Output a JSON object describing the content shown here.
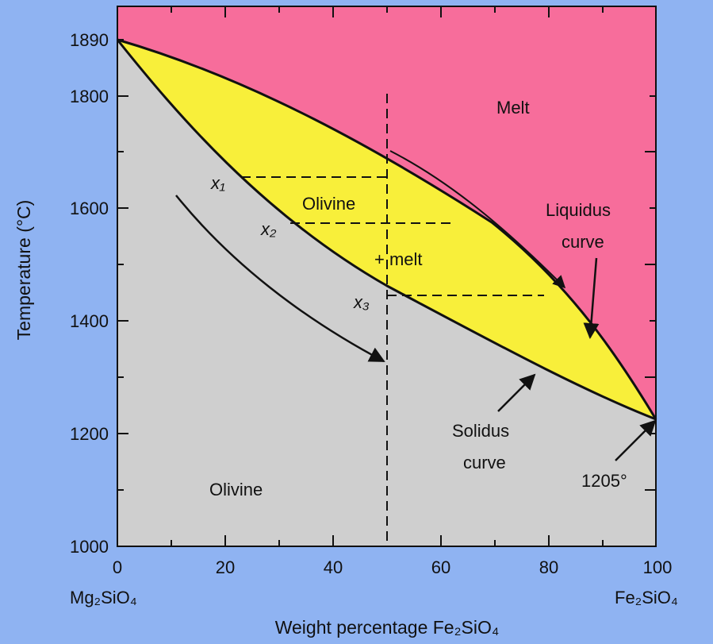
{
  "diagram": {
    "type": "binary phase diagram",
    "axes": {
      "x": {
        "title": "Weight percentage Fe₂SiO₄",
        "range": [
          0,
          100
        ],
        "ticks": [
          "0",
          "20",
          "40",
          "60",
          "80",
          "100"
        ],
        "left_endmember": "Mg₂SiO₄",
        "right_endmember": "Fe₂SiO₄"
      },
      "y": {
        "title": "Temperature (°C)",
        "range": [
          1000,
          1910
        ],
        "ticks": [
          "1000",
          "1200",
          "1400",
          "1600",
          "1800",
          "1890"
        ]
      }
    },
    "regions": {
      "melt": "Melt",
      "olivine_melt_line1": "Olivine",
      "olivine_melt_line2": "+ melt",
      "olivine": "Olivine"
    },
    "curve_labels": {
      "liquidus_line1": "Liquidus",
      "liquidus_line2": "curve",
      "solidus_line1": "Solidus",
      "solidus_line2": "curve"
    },
    "points": {
      "x1": "x₁",
      "x2": "x₂",
      "x3": "x₃",
      "eutectic": "1205°"
    },
    "colors": {
      "melt": "#f76d9b",
      "olivine_melt": "#f8ef3a",
      "olivine": "#cfcfcf",
      "background": "#8fb3f2"
    }
  }
}
